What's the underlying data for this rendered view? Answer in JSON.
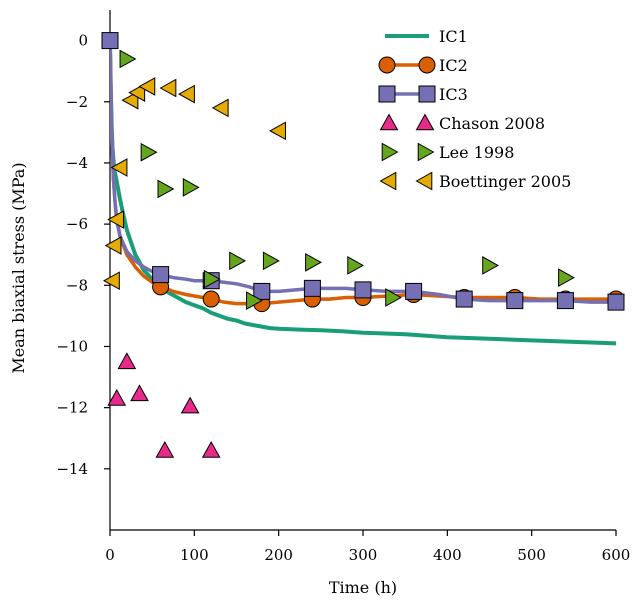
{
  "chart_data": {
    "type": "line",
    "title": "",
    "xlabel": "Time (h)",
    "ylabel": "Mean biaxial stress (MPa)",
    "xlim": [
      0,
      600
    ],
    "ylim": [
      -16,
      1
    ],
    "xticks": [
      0,
      100,
      200,
      300,
      400,
      500,
      600
    ],
    "yticks": [
      0,
      -2,
      -4,
      -6,
      -8,
      -10,
      -12,
      -14
    ],
    "grid": false,
    "legend_position": "top-right",
    "series": [
      {
        "name": "IC1",
        "kind": "line",
        "color": "#1a9e77",
        "x": [
          0,
          1,
          2,
          3,
          5,
          8,
          10,
          12,
          15,
          20,
          25,
          30,
          40,
          50,
          60,
          70,
          80,
          90,
          100,
          110,
          120,
          130,
          140,
          150,
          160,
          170,
          180,
          190,
          200,
          225,
          250,
          275,
          300,
          350,
          400,
          450,
          500,
          550,
          600
        ],
        "y": [
          0,
          -1.5,
          -2.8,
          -3.5,
          -4.2,
          -4.6,
          -4.9,
          -5.2,
          -5.6,
          -6.2,
          -6.6,
          -7.0,
          -7.5,
          -7.8,
          -8.05,
          -8.25,
          -8.4,
          -8.55,
          -8.65,
          -8.75,
          -8.9,
          -9.0,
          -9.1,
          -9.15,
          -9.25,
          -9.3,
          -9.35,
          -9.4,
          -9.42,
          -9.45,
          -9.47,
          -9.5,
          -9.55,
          -9.6,
          -9.7,
          -9.75,
          -9.8,
          -9.85,
          -9.9
        ]
      },
      {
        "name": "IC2",
        "kind": "line-marker",
        "color": "#d95f02",
        "marker": "circle",
        "x": [
          0,
          2,
          4,
          6,
          8,
          12,
          20,
          30,
          40,
          50,
          60,
          75,
          90,
          100,
          110,
          120,
          135,
          150,
          165,
          180,
          200,
          220,
          240,
          260,
          280,
          300,
          330,
          360,
          390,
          420,
          450,
          480,
          510,
          540,
          570,
          600
        ],
        "y": [
          0,
          -3.0,
          -4.5,
          -5.3,
          -5.8,
          -6.4,
          -7.0,
          -7.4,
          -7.7,
          -7.9,
          -8.05,
          -8.2,
          -8.3,
          -8.35,
          -8.4,
          -8.45,
          -8.55,
          -8.6,
          -8.6,
          -8.6,
          -8.55,
          -8.5,
          -8.45,
          -8.45,
          -8.4,
          -8.4,
          -8.35,
          -8.3,
          -8.35,
          -8.4,
          -8.4,
          -8.4,
          -8.45,
          -8.45,
          -8.45,
          -8.45
        ],
        "marker_x": [
          60,
          120,
          180,
          240,
          300,
          360,
          420,
          480,
          540,
          600
        ],
        "marker_y": [
          -8.05,
          -8.45,
          -8.6,
          -8.45,
          -8.4,
          -8.3,
          -8.4,
          -8.4,
          -8.45,
          -8.45
        ]
      },
      {
        "name": "IC3",
        "kind": "line-marker",
        "color": "#7570b3",
        "marker": "square",
        "x": [
          0,
          2,
          4,
          6,
          8,
          12,
          20,
          30,
          40,
          50,
          60,
          75,
          90,
          100,
          110,
          120,
          135,
          150,
          165,
          180,
          200,
          220,
          240,
          260,
          280,
          300,
          330,
          360,
          390,
          420,
          450,
          480,
          510,
          540,
          570,
          600
        ],
        "y": [
          0,
          -3.0,
          -4.5,
          -5.3,
          -5.9,
          -6.4,
          -6.9,
          -7.2,
          -7.4,
          -7.55,
          -7.65,
          -7.75,
          -7.8,
          -7.85,
          -7.85,
          -7.85,
          -7.9,
          -7.95,
          -8.05,
          -8.2,
          -8.2,
          -8.15,
          -8.1,
          -8.1,
          -8.1,
          -8.15,
          -8.2,
          -8.2,
          -8.3,
          -8.45,
          -8.5,
          -8.5,
          -8.5,
          -8.5,
          -8.55,
          -8.55
        ],
        "marker_x": [
          0,
          60,
          120,
          180,
          240,
          300,
          360,
          420,
          480,
          540,
          600
        ],
        "marker_y": [
          0,
          -7.65,
          -7.85,
          -8.2,
          -8.1,
          -8.15,
          -8.2,
          -8.45,
          -8.5,
          -8.5,
          -8.55
        ]
      },
      {
        "name": "Chason 2008",
        "kind": "scatter",
        "color": "#e7298a",
        "marker": "triangle-up",
        "x": [
          8,
          20,
          35,
          65,
          95,
          120
        ],
        "y": [
          -11.7,
          -10.5,
          -11.55,
          -13.4,
          -11.95,
          -13.4
        ]
      },
      {
        "name": "Lee 1998",
        "kind": "scatter",
        "color": "#66a61e",
        "marker": "triangle-right",
        "x": [
          20,
          45,
          65,
          95,
          120,
          150,
          190,
          240,
          290,
          335,
          450,
          540,
          170
        ],
        "y": [
          -0.6,
          -3.65,
          -4.85,
          -4.8,
          -7.8,
          -7.2,
          -7.2,
          -7.25,
          -7.35,
          -8.4,
          -7.35,
          -7.75,
          -8.5
        ]
      },
      {
        "name": "Boettinger 2005",
        "kind": "scatter",
        "color": "#e6ab02",
        "marker": "triangle-left",
        "x": [
          3,
          5,
          8,
          12,
          25,
          33,
          45,
          70,
          92,
          132,
          200
        ],
        "y": [
          -7.85,
          -6.7,
          -5.85,
          -4.15,
          -1.95,
          -1.7,
          -1.5,
          -1.55,
          -1.75,
          -2.2,
          -2.95
        ]
      }
    ]
  }
}
